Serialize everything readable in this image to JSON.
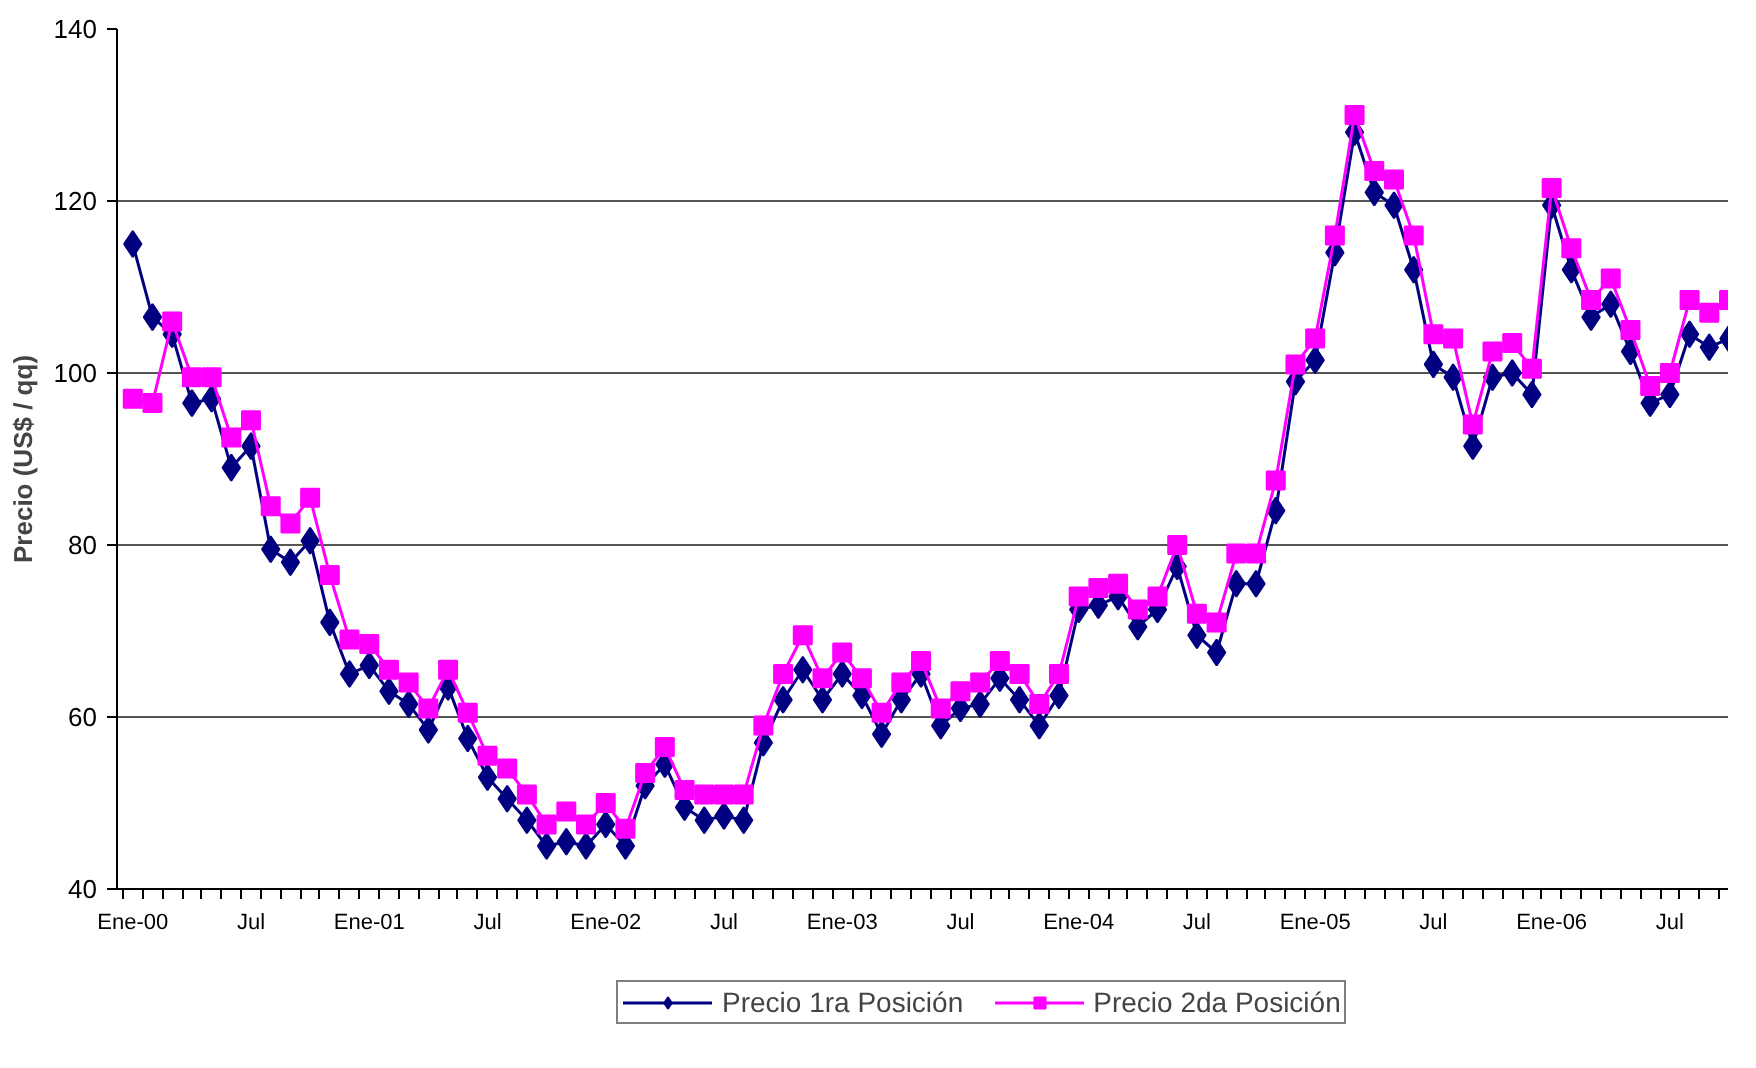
{
  "chart_data": {
    "type": "line",
    "ylabel": "Precio (US$ / qq)",
    "categories": [
      "Ene-00",
      null,
      null,
      null,
      null,
      null,
      "Jul",
      null,
      null,
      null,
      null,
      null,
      "Ene-01",
      null,
      null,
      null,
      null,
      null,
      "Jul",
      null,
      null,
      null,
      null,
      null,
      "Ene-02",
      null,
      null,
      null,
      null,
      null,
      "Jul",
      null,
      null,
      null,
      null,
      null,
      "Ene-03",
      null,
      null,
      null,
      null,
      null,
      "Jul",
      null,
      null,
      null,
      null,
      null,
      "Ene-04",
      null,
      null,
      null,
      null,
      null,
      "Jul",
      null,
      null,
      null,
      null,
      null,
      "Ene-05",
      null,
      null,
      null,
      null,
      null,
      "Jul",
      null,
      null,
      null,
      null,
      null,
      "Ene-06",
      null,
      null,
      null,
      null,
      null,
      "Jul",
      null,
      null,
      null
    ],
    "series": [
      {
        "name": "Precio 1ra Posición",
        "color": "#000080",
        "marker": "diamond",
        "values": [
          115,
          106.5,
          104.5,
          96.5,
          97,
          89,
          91.5,
          79.5,
          78,
          80.5,
          71,
          65,
          66,
          63,
          61.5,
          58.5,
          63.5,
          57.5,
          53,
          50.5,
          48,
          45,
          45.5,
          45,
          47.5,
          45,
          52,
          54.5,
          49.5,
          48,
          48.5,
          48,
          57,
          62,
          65.5,
          62,
          65,
          62.5,
          58,
          62,
          65,
          59,
          61,
          61.5,
          64.5,
          62,
          59,
          62.5,
          72.5,
          73,
          74,
          70.5,
          72.5,
          77.5,
          69.5,
          67.5,
          75.5,
          75.5,
          84,
          99,
          101.5,
          114,
          128,
          121,
          119.5,
          112,
          101,
          99.5,
          91.5,
          99.5,
          100,
          97.5,
          119.5,
          112,
          106.5,
          108,
          102.5,
          96.5,
          97.5,
          104.5,
          103,
          104
        ]
      },
      {
        "name": "Precio 2da Posición",
        "color": "#ff00ff",
        "marker": "square",
        "values": [
          97,
          96.5,
          106,
          99.5,
          99.5,
          92.5,
          94.5,
          84.5,
          82.5,
          85.5,
          76.5,
          69,
          68.5,
          65.5,
          64,
          61,
          65.5,
          60.5,
          55.5,
          54,
          51,
          47.5,
          49,
          47.5,
          50,
          47,
          53.5,
          56.5,
          51.5,
          51,
          51,
          51,
          59,
          65,
          69.5,
          64.5,
          67.5,
          64.5,
          60.5,
          64,
          66.5,
          61,
          63,
          64,
          66.5,
          65,
          61.5,
          65,
          74,
          75,
          75.5,
          72.5,
          74,
          80,
          72,
          71,
          79,
          79,
          87.5,
          101,
          104,
          116,
          130,
          123.5,
          122.5,
          116,
          104.5,
          104,
          94,
          102.5,
          103.5,
          100.5,
          121.5,
          114.5,
          108.5,
          111,
          105,
          98.5,
          100,
          108.5,
          107,
          108.5
        ]
      }
    ],
    "ylim": [
      40,
      140
    ],
    "yticks": [
      40,
      60,
      80,
      100,
      120,
      140
    ],
    "grid": "y",
    "legend": "bottom",
    "line_style": "solid"
  }
}
